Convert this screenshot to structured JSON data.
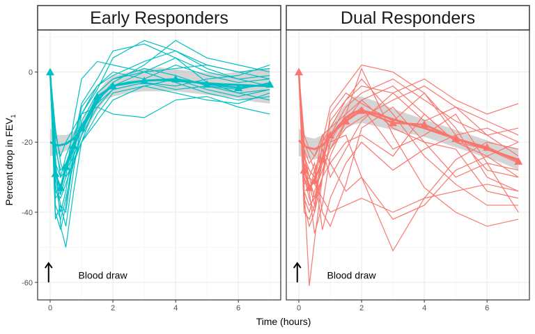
{
  "chart_data": {
    "type": "line",
    "xlabel": "Time (hours)",
    "ylabel": {
      "main": "Percent drop in  FEV",
      "subscript": "1"
    },
    "xlim": [
      -0.4,
      7.35
    ],
    "ylim": [
      -65,
      12
    ],
    "x_ticks": [
      0,
      2,
      4,
      6
    ],
    "y_ticks": [
      0,
      -20,
      -40,
      -60
    ],
    "grid": true,
    "legend": "none",
    "annotation": {
      "text": "Blood draw",
      "arrow_x": -0.05,
      "arrow_from_y": -60,
      "arrow_to_y": -54.5,
      "text_x": 0.9,
      "text_y": -58
    },
    "panels": [
      {
        "title": "Early Responders",
        "color": "#00BFC4",
        "summary": {
          "x": [
            0,
            0.167,
            0.333,
            0.5,
            0.75,
            1,
            1.5,
            2,
            3,
            4,
            5,
            6,
            7
          ],
          "y": [
            0,
            -29,
            -33,
            -27,
            -21,
            -16,
            -7,
            -4,
            -2.5,
            -2,
            -3.5,
            -4.5,
            -3.5
          ]
        },
        "smooth": {
          "x": [
            0,
            0.25,
            0.5,
            0.75,
            1,
            1.25,
            1.5,
            1.75,
            2,
            2.5,
            3,
            3.5,
            4,
            4.5,
            5,
            5.5,
            6,
            6.5,
            7
          ],
          "y": [
            -20,
            -21,
            -20.5,
            -19,
            -16.5,
            -12.5,
            -8.5,
            -5.5,
            -4,
            -3,
            -2.5,
            -2.3,
            -2.5,
            -2.8,
            -3.2,
            -3.5,
            -3.7,
            -3.9,
            -4
          ],
          "lower": [
            -24,
            -23.5,
            -22.5,
            -21,
            -18.5,
            -15,
            -11,
            -8,
            -7,
            -6,
            -5.5,
            -5.5,
            -5.5,
            -6,
            -6.5,
            -7,
            -7.5,
            -8.5,
            -9
          ],
          "upper": [
            -16,
            -18,
            -18,
            -17,
            -14.5,
            -10,
            -6,
            -3,
            -1,
            0,
            0.8,
            1.3,
            0.8,
            0.3,
            -0.3,
            -0.5,
            0,
            0.5,
            1
          ]
        },
        "subjects": [
          [
            0,
            -24,
            -44,
            -50,
            -34,
            -20,
            -8,
            -3,
            2,
            9,
            4,
            2,
            0
          ],
          [
            0,
            -30,
            -38,
            -44,
            -28,
            -14,
            -6,
            -2,
            0,
            4,
            0,
            -2,
            -1
          ],
          [
            0,
            -40,
            -45,
            -38,
            -22,
            -10,
            -4,
            -1,
            3,
            6,
            2,
            0,
            -2
          ],
          [
            0,
            -26,
            -30,
            -24,
            -18,
            -12,
            -5,
            4,
            9,
            6,
            1,
            -2,
            -4
          ],
          [
            0,
            -34,
            -36,
            -32,
            -25,
            -20,
            -14,
            -8,
            -4,
            -2,
            -5,
            -7,
            -5
          ],
          [
            0,
            -22,
            -28,
            -26,
            -20,
            -15,
            -9,
            -5,
            -3,
            -5,
            -4,
            -6,
            -8
          ],
          [
            0,
            -28,
            -35,
            -30,
            -14,
            -2,
            3,
            2,
            0,
            -3,
            -6,
            -8,
            -7
          ],
          [
            0,
            -32,
            -40,
            -34,
            -20,
            -9,
            -2,
            6,
            8,
            4,
            -3,
            -6,
            -5
          ],
          [
            0,
            -18,
            -24,
            -20,
            -16,
            -12,
            -10,
            -12,
            -13,
            -8,
            -7,
            -10,
            -12
          ],
          [
            0,
            -38,
            -42,
            -36,
            -26,
            -18,
            -10,
            -5,
            -3,
            -4,
            -2,
            -1,
            2
          ],
          [
            0,
            -20,
            -30,
            -28,
            -24,
            -18,
            -6,
            -2,
            1,
            -1,
            -4,
            -5,
            -3
          ],
          [
            0,
            -36,
            -34,
            -28,
            -22,
            -16,
            -8,
            -4,
            0,
            1,
            2,
            0,
            1
          ],
          [
            0,
            -16,
            -26,
            -30,
            -26,
            -20,
            -12,
            -6,
            -4,
            -6,
            -8,
            -9,
            -6
          ],
          [
            0,
            -42,
            -38,
            -40,
            -24,
            -12,
            -4,
            0,
            -2,
            2,
            -1,
            -3,
            -2
          ]
        ]
      },
      {
        "title": "Dual Responders",
        "color": "#F8766D",
        "summary": {
          "x": [
            0,
            0.167,
            0.333,
            0.5,
            0.75,
            1,
            1.5,
            2,
            3,
            4,
            5,
            6,
            7
          ],
          "y": [
            0,
            -28,
            -33,
            -31,
            -25,
            -18,
            -14,
            -11,
            -14.5,
            -15,
            -19,
            -21.5,
            -25.5
          ]
        },
        "smooth": {
          "x": [
            0,
            0.25,
            0.5,
            0.75,
            1,
            1.25,
            1.5,
            1.75,
            2,
            2.5,
            3,
            3.5,
            4,
            4.5,
            5,
            5.5,
            6,
            6.5,
            7
          ],
          "y": [
            -19.5,
            -21.5,
            -22,
            -21,
            -18.5,
            -15.5,
            -13,
            -11.5,
            -11,
            -12,
            -13.5,
            -14.8,
            -16,
            -17.5,
            -19,
            -20.5,
            -22,
            -23.5,
            -25
          ],
          "lower": [
            -24,
            -24.5,
            -25,
            -24,
            -21.5,
            -18.5,
            -16,
            -15,
            -14.5,
            -15.5,
            -16.5,
            -17.5,
            -18.5,
            -20,
            -21.5,
            -23,
            -24.5,
            -26,
            -28
          ],
          "upper": [
            -16,
            -18.5,
            -19,
            -18,
            -15.5,
            -12,
            -9,
            -7,
            -7,
            -8.5,
            -10.5,
            -12,
            -13.5,
            -15,
            -16.5,
            -18,
            -19.5,
            -21,
            -22
          ]
        },
        "subjects": [
          [
            0,
            -33,
            -61,
            -48,
            -30,
            -20,
            -12,
            -8,
            -16,
            -20,
            -22,
            -34,
            -36
          ],
          [
            0,
            -30,
            -36,
            -40,
            -20,
            -10,
            -4,
            2,
            0,
            -6,
            -18,
            -28,
            -30
          ],
          [
            0,
            -22,
            -34,
            -46,
            -38,
            -24,
            -14,
            -10,
            -22,
            -18,
            -12,
            -26,
            -40
          ],
          [
            0,
            -26,
            -30,
            -36,
            -30,
            -12,
            -6,
            -9,
            -14,
            -6,
            -16,
            -30,
            -34
          ],
          [
            0,
            -20,
            -24,
            -28,
            -45,
            -36,
            -26,
            -20,
            -28,
            -22,
            -18,
            -16,
            -20
          ],
          [
            0,
            -36,
            -40,
            -34,
            -28,
            -22,
            -16,
            -13,
            -8,
            -4,
            -10,
            -14,
            -18
          ],
          [
            0,
            -24,
            -28,
            -30,
            -22,
            -26,
            -34,
            -30,
            -51,
            -36,
            -25,
            -20,
            -22
          ],
          [
            0,
            -28,
            -32,
            -38,
            -24,
            -14,
            -8,
            -2,
            -12,
            -24,
            -32,
            -38,
            -38
          ],
          [
            0,
            -32,
            -30,
            -26,
            -40,
            -44,
            -32,
            -16,
            -10,
            -20,
            -30,
            -26,
            -28
          ],
          [
            0,
            -18,
            -22,
            -24,
            -18,
            -16,
            -12,
            1,
            -18,
            -33,
            -40,
            -44,
            -42
          ],
          [
            0,
            -34,
            -38,
            -36,
            -26,
            -18,
            -10,
            -6,
            -2,
            -8,
            -14,
            -18,
            -24
          ],
          [
            0,
            -38,
            -44,
            -40,
            -30,
            -20,
            -18,
            -30,
            -42,
            -38,
            -28,
            -24,
            -30
          ],
          [
            0,
            -26,
            -28,
            -30,
            -18,
            -22,
            -14,
            -8,
            -4,
            -12,
            -20,
            -22,
            -26
          ],
          [
            0,
            -30,
            -34,
            -28,
            -22,
            -30,
            -22,
            -14,
            -6,
            -2,
            -8,
            -12,
            -9
          ],
          [
            0,
            -24,
            -30,
            -32,
            -36,
            -40,
            -38,
            -36,
            -40,
            -36,
            -34,
            -32,
            -34
          ],
          [
            0,
            -40,
            -42,
            -38,
            -30,
            -26,
            -20,
            -18,
            -24,
            -12,
            -20,
            -24,
            -20
          ],
          [
            0,
            -22,
            -26,
            -24,
            -20,
            -16,
            -8,
            -4,
            -6,
            -14,
            -10,
            -18,
            -16
          ]
        ]
      }
    ]
  }
}
